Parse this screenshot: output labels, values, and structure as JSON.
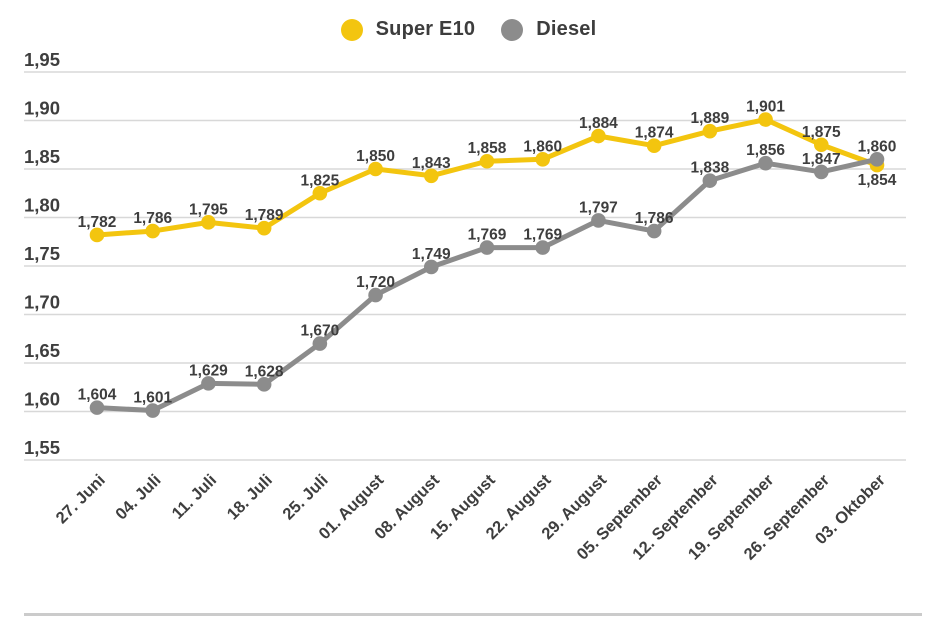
{
  "page": {
    "background": "#ffffff",
    "text_color": "#3e3e3e",
    "grid_color": "#d8d8d8",
    "separator_color": "#cbcbcb"
  },
  "chart_data": {
    "type": "line",
    "title": "",
    "xlabel": "",
    "ylabel": "",
    "categories": [
      "27. Juni",
      "04. Juli",
      "11. Juli",
      "18. Juli",
      "25. Juli",
      "01. August",
      "08. August",
      "15. August",
      "22. August",
      "29. August",
      "05. September",
      "12. September",
      "19. September",
      "26. September",
      "03. Oktober"
    ],
    "series": [
      {
        "name": "Super E10",
        "color": "#f3c50f",
        "values": [
          1.782,
          1.786,
          1.795,
          1.789,
          1.825,
          1.85,
          1.843,
          1.858,
          1.86,
          1.884,
          1.874,
          1.889,
          1.901,
          1.875,
          1.854
        ]
      },
      {
        "name": "Diesel",
        "color": "#8c8c8c",
        "values": [
          1.604,
          1.601,
          1.629,
          1.628,
          1.67,
          1.72,
          1.749,
          1.769,
          1.769,
          1.797,
          1.786,
          1.838,
          1.856,
          1.847,
          1.86
        ]
      }
    ],
    "y_ticks": [
      1.95,
      1.9,
      1.85,
      1.8,
      1.75,
      1.7,
      1.65,
      1.6,
      1.55
    ],
    "ylim": [
      1.55,
      1.95
    ],
    "decimal_separator": ",",
    "grid": true,
    "data_labels": true,
    "legend_position": "top-center"
  }
}
